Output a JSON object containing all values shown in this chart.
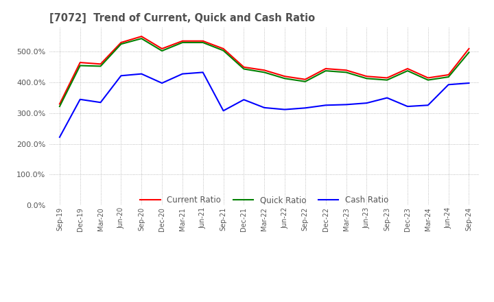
{
  "title": "[7072]  Trend of Current, Quick and Cash Ratio",
  "title_color": "#505050",
  "background_color": "#ffffff",
  "plot_bg_color": "#ffffff",
  "grid_color": "#aaaaaa",
  "x_labels": [
    "Sep-19",
    "Dec-19",
    "Mar-20",
    "Jun-20",
    "Sep-20",
    "Dec-20",
    "Mar-21",
    "Jun-21",
    "Sep-21",
    "Dec-21",
    "Mar-22",
    "Jun-22",
    "Sep-22",
    "Dec-22",
    "Mar-23",
    "Jun-23",
    "Sep-23",
    "Dec-23",
    "Mar-24",
    "Jun-24",
    "Sep-24"
  ],
  "current_ratio": [
    3.3,
    4.65,
    4.6,
    5.3,
    5.5,
    5.1,
    5.35,
    5.35,
    5.1,
    4.5,
    4.4,
    4.2,
    4.1,
    4.45,
    4.4,
    4.2,
    4.15,
    4.45,
    4.15,
    4.25,
    5.1
  ],
  "quick_ratio": [
    3.22,
    4.55,
    4.53,
    5.25,
    5.43,
    5.03,
    5.3,
    5.3,
    5.04,
    4.44,
    4.33,
    4.13,
    4.03,
    4.38,
    4.33,
    4.13,
    4.08,
    4.38,
    4.08,
    4.18,
    4.98
  ],
  "cash_ratio": [
    2.22,
    3.45,
    3.35,
    4.22,
    4.28,
    3.98,
    4.28,
    4.33,
    3.08,
    3.44,
    3.18,
    3.12,
    3.17,
    3.26,
    3.28,
    3.33,
    3.5,
    3.22,
    3.26,
    3.93,
    3.98
  ],
  "ylim": [
    0.0,
    5.8
  ],
  "yticks": [
    0.0,
    1.0,
    2.0,
    3.0,
    4.0,
    5.0
  ],
  "line_width": 1.5,
  "current_color": "#ff0000",
  "quick_color": "#008000",
  "cash_color": "#0000ff",
  "legend_labels": [
    "Current Ratio",
    "Quick Ratio",
    "Cash Ratio"
  ]
}
